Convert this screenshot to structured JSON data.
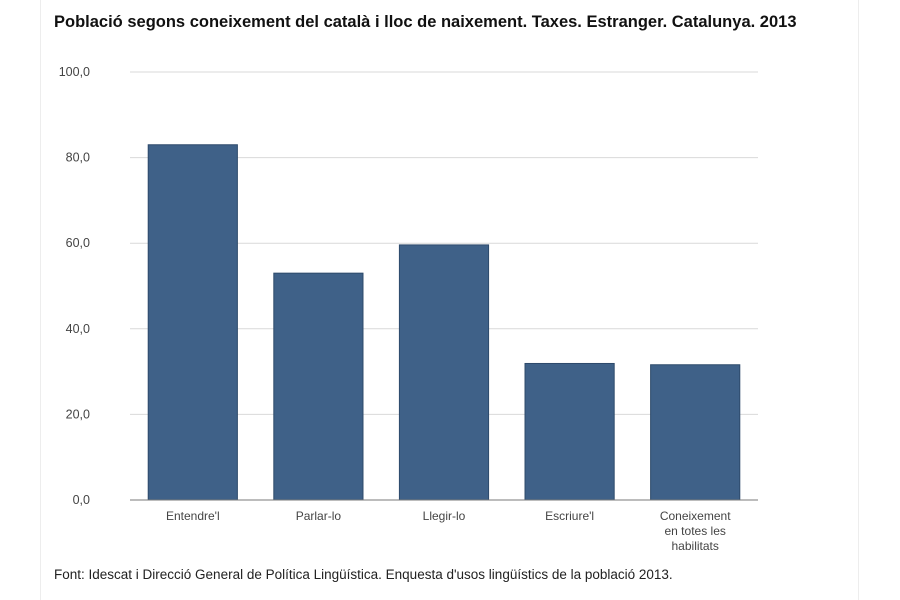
{
  "chart_data": {
    "type": "bar",
    "title": "Població segons coneixement del català i lloc de naixement. Taxes. Estranger. Catalunya. 2013",
    "categories": [
      [
        "Entendre'l"
      ],
      [
        "Parlar-lo"
      ],
      [
        "Llegir-lo"
      ],
      [
        "Escriure'l"
      ],
      [
        "Coneixement",
        "en totes les",
        "habilitats"
      ]
    ],
    "values": [
      83.0,
      53.0,
      59.6,
      31.9,
      31.6
    ],
    "y_ticks": [
      "0,0",
      "20,0",
      "40,0",
      "60,0",
      "80,0",
      "100,0"
    ],
    "ylim": [
      0,
      100
    ],
    "grid": true,
    "bar_color": "#3f6188",
    "source": "Font: Idescat i Direcció General de Política Lingüística. Enquesta d'usos lingüístics de la població 2013."
  }
}
